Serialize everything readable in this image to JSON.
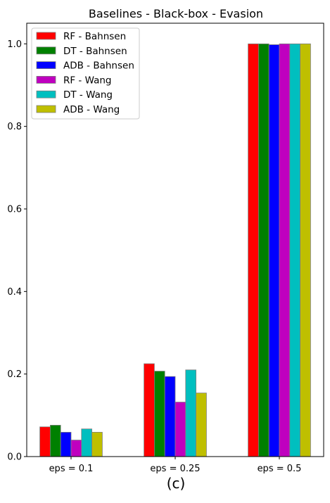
{
  "chart_data": {
    "type": "bar",
    "title": "Baselines - Black-box - Evasion",
    "caption": "(c)",
    "xlabel": "",
    "ylabel": "",
    "categories": [
      "eps = 0.1",
      "eps = 0.25",
      "eps = 0.5"
    ],
    "ylim": [
      0,
      1.05
    ],
    "yticks": [
      0.0,
      0.2,
      0.4,
      0.6,
      0.8,
      1.0
    ],
    "ytick_labels": [
      "0.0",
      "0.2",
      "0.4",
      "0.6",
      "0.8",
      "1.0"
    ],
    "grid": false,
    "legend_position": "top-left",
    "series": [
      {
        "name": "RF - Bahnsen",
        "color": "#ff0000",
        "values": [
          0.072,
          0.225,
          1.0
        ]
      },
      {
        "name": "DT - Bahnsen",
        "color": "#008000",
        "values": [
          0.076,
          0.207,
          1.0
        ]
      },
      {
        "name": "ADB - Bahnsen",
        "color": "#0000ff",
        "values": [
          0.059,
          0.194,
          0.998
        ]
      },
      {
        "name": "RF - Wang",
        "color": "#bf00bf",
        "values": [
          0.04,
          0.132,
          1.0
        ]
      },
      {
        "name": "DT - Wang",
        "color": "#00bfbf",
        "values": [
          0.067,
          0.21,
          1.0
        ]
      },
      {
        "name": "ADB - Wang",
        "color": "#bfbf00",
        "values": [
          0.059,
          0.154,
          1.0
        ]
      }
    ]
  }
}
